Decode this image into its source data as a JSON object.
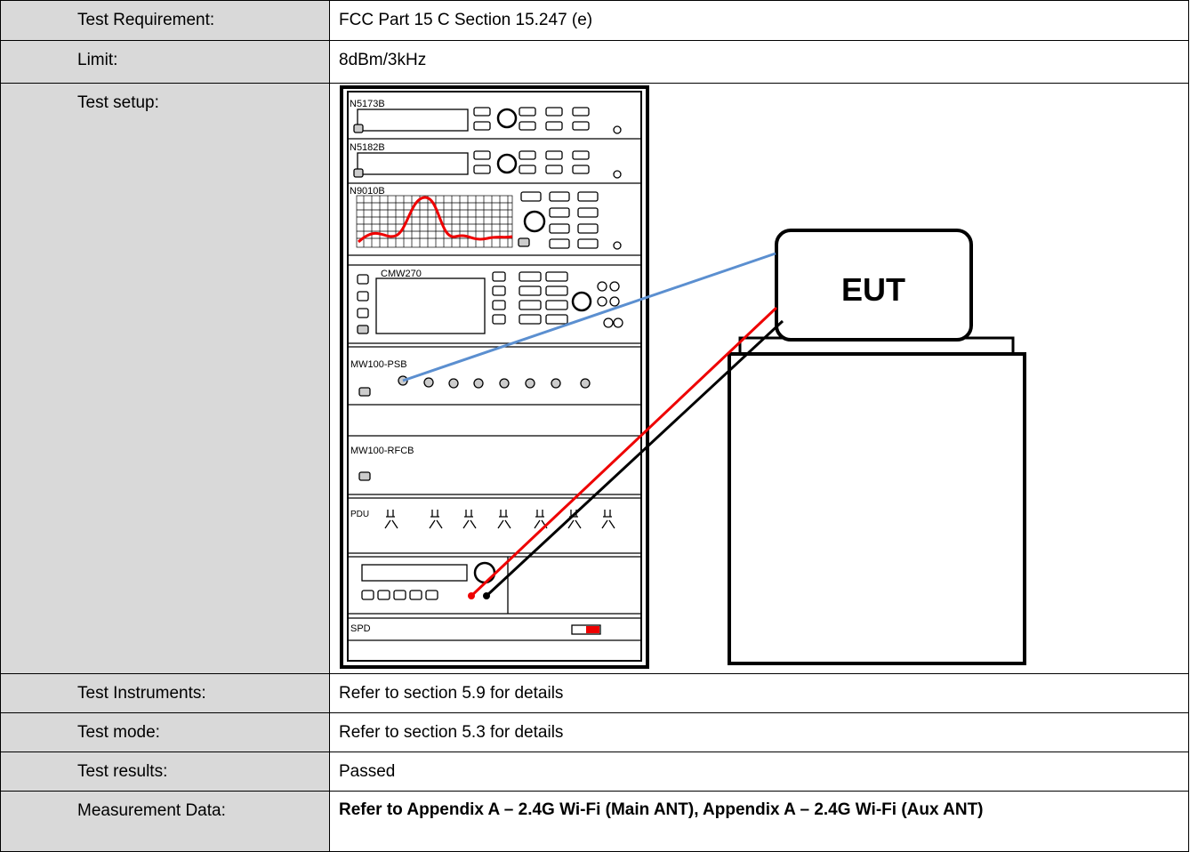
{
  "table": {
    "rows": [
      {
        "label": "Test Requirement:",
        "value": "FCC Part 15 C Section 15.247 (e)"
      },
      {
        "label": "Limit:",
        "value": "8dBm/3kHz"
      },
      {
        "label": "Test setup:"
      },
      {
        "label": "Test Instruments:",
        "value": "Refer to section 5.9 for details"
      },
      {
        "label": "Test mode:",
        "value": "Refer to section 5.3 for details"
      },
      {
        "label": "Test results:",
        "value": "Passed"
      },
      {
        "label": "Measurement Data:",
        "value": "Refer to Appendix A – 2.4G Wi-Fi (Main ANT), Appendix A – 2.4G Wi-Fi (Aux ANT)"
      }
    ]
  },
  "diagram": {
    "labels": {
      "sg1": "N5173B",
      "sg2": "N5182B",
      "sa": "N9010B",
      "cmw": "CMW270",
      "psb": "MW100-PSB",
      "rfcb": "MW100-RFCB",
      "pdu": "PDU",
      "spd": "SPD",
      "eut": "EUT"
    }
  }
}
